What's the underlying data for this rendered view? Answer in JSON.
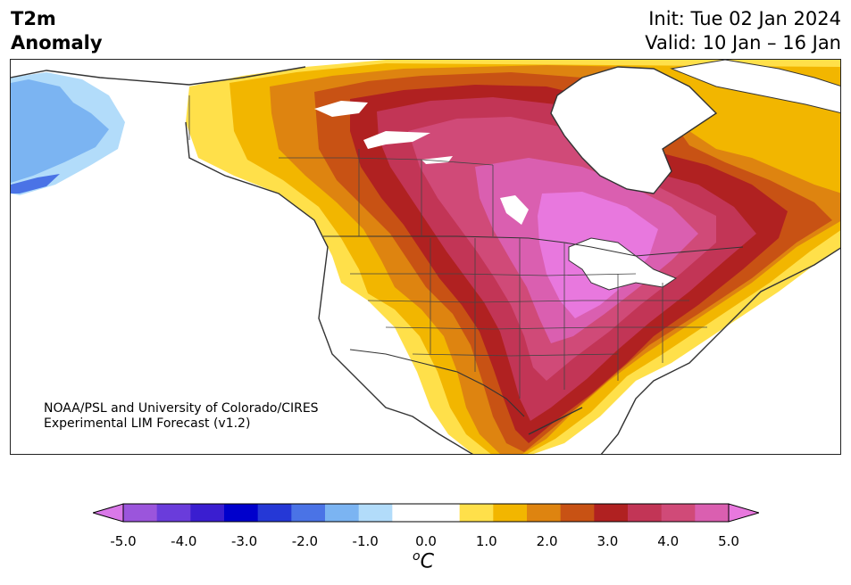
{
  "title": {
    "left_line1": "T2m",
    "left_line2": "Anomaly",
    "right_line1": "Init: Tue 02 Jan 2024",
    "right_line2": "Valid: 10 Jan – 16 Jan"
  },
  "credit": {
    "line1": "NOAA/PSL and University of Colorado/CIRES",
    "line2": "Experimental LIM Forecast (v1.2)"
  },
  "colorbar": {
    "ticks": [
      "-5.0",
      "-4.0",
      "-3.0",
      "-2.0",
      "-1.0",
      "0.0",
      "1.0",
      "2.0",
      "3.0",
      "4.0",
      "5.0"
    ],
    "unit_sup": "o",
    "unit": "C",
    "colors": [
      "#d978e8",
      "#9b55dc",
      "#6a3cdb",
      "#3a1ed0",
      "#0000cc",
      "#2538d6",
      "#4a73e6",
      "#7bb4f2",
      "#b2dcfa",
      "#ffffff",
      "#ffffff",
      "#ffe04a",
      "#f2b600",
      "#de8410",
      "#c85214",
      "#b02121",
      "#c23556",
      "#d04a78",
      "#da5fb0",
      "#e878de"
    ]
  },
  "map": {
    "region": "North America",
    "colors": {
      "land_outline": "#333333",
      "cold_light": "#b2dcfa",
      "cold_mid": "#7bb4f2",
      "cold_deep": "#4a73e6",
      "warm_1": "#ffe04a",
      "warm_2": "#f2b600",
      "warm_3": "#de8410",
      "warm_4": "#c85214",
      "warm_5": "#b02121",
      "warm_6": "#c23556",
      "warm_7": "#d04a78",
      "warm_8": "#da5fb0",
      "warm_9": "#e878de"
    }
  }
}
